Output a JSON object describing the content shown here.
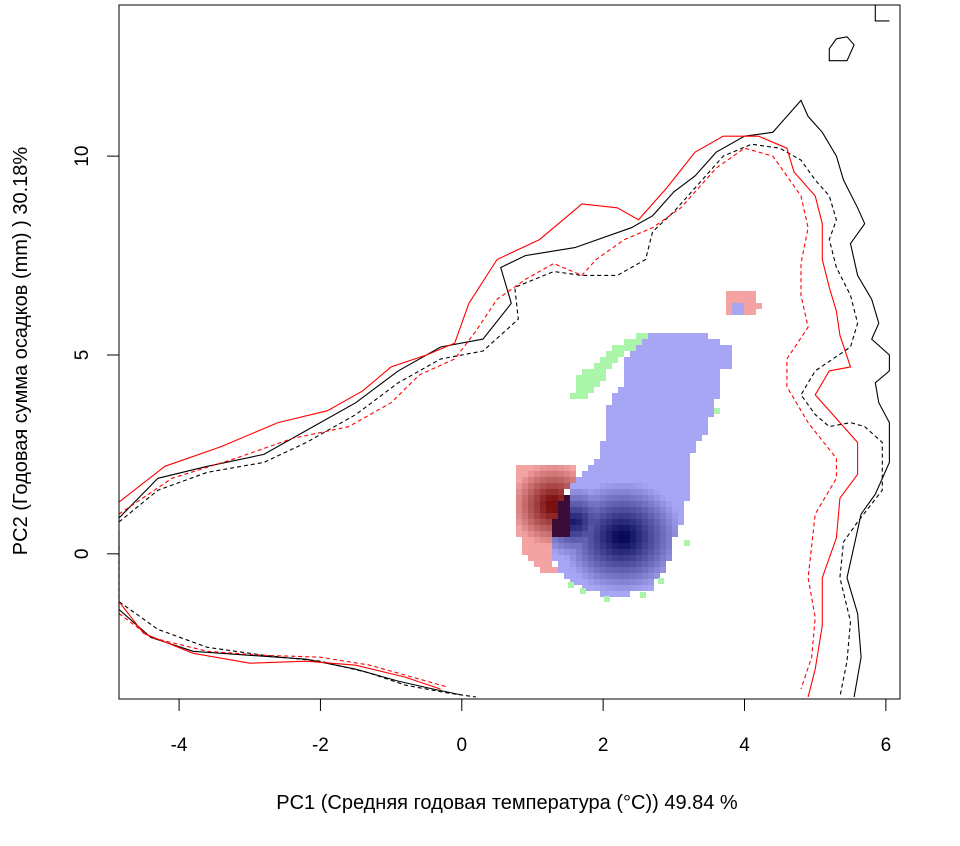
{
  "chart_data": {
    "type": "heatmap",
    "xlabel": "PC1 (Средняя годовая температура (°C)) 49.84 %",
    "ylabel": "PC2 (Годовая сумма осадков  (mm) ) 30.18%",
    "xlim": [
      -4.85,
      6.2
    ],
    "ylim": [
      -3.65,
      13.8
    ],
    "x_ticks": [
      -4,
      -2,
      0,
      2,
      4,
      6
    ],
    "y_ticks": [
      0,
      5,
      10
    ],
    "x_tick_labels": [
      "-4",
      "-2",
      "0",
      "2",
      "4",
      "6"
    ],
    "y_tick_labels": [
      "0",
      "5",
      "10"
    ],
    "grid": false,
    "colors": {
      "blue_density": "#a6a6f5",
      "dark_blue": "#0a0a5a",
      "red_density": "#f4a3a3",
      "dark_red": "#7a0f0f",
      "green_overlap": "#aaf5aa",
      "contour_black": "#000000",
      "contour_red": "#ff0000"
    },
    "series": [
      {
        "style": "solid",
        "color": "#000000",
        "points": [
          [
            -4.85,
            0.9
          ],
          [
            -4.3,
            1.9
          ],
          [
            -3.6,
            2.2
          ],
          [
            -2.8,
            2.5
          ],
          [
            -2.2,
            3.1
          ],
          [
            -1.5,
            3.8
          ],
          [
            -0.9,
            4.6
          ],
          [
            -0.3,
            5.2
          ],
          [
            0.3,
            5.4
          ],
          [
            0.7,
            6.3
          ],
          [
            0.55,
            7.2
          ],
          [
            0.9,
            7.5
          ],
          [
            1.6,
            7.7
          ],
          [
            2.4,
            8.2
          ],
          [
            2.7,
            8.5
          ],
          [
            3.0,
            9.1
          ],
          [
            3.3,
            9.5
          ],
          [
            3.6,
            10.1
          ],
          [
            4.0,
            10.5
          ],
          [
            4.4,
            10.6
          ],
          [
            4.6,
            11.0
          ],
          [
            4.8,
            11.4
          ],
          [
            4.9,
            11.0
          ],
          [
            5.1,
            10.6
          ],
          [
            5.3,
            10.0
          ],
          [
            5.4,
            9.4
          ],
          [
            5.6,
            8.7
          ],
          [
            5.7,
            8.3
          ],
          [
            5.5,
            7.8
          ],
          [
            5.6,
            7.0
          ],
          [
            5.8,
            6.4
          ],
          [
            5.9,
            5.8
          ],
          [
            5.8,
            5.4
          ],
          [
            6.05,
            5.0
          ],
          [
            6.05,
            4.6
          ],
          [
            5.85,
            4.3
          ],
          [
            5.9,
            3.8
          ],
          [
            6.05,
            3.3
          ],
          [
            6.05,
            2.3
          ],
          [
            5.85,
            1.5
          ],
          [
            5.65,
            1.0
          ],
          [
            5.55,
            0.2
          ],
          [
            5.45,
            -0.6
          ],
          [
            5.6,
            -1.5
          ],
          [
            5.65,
            -2.6
          ],
          [
            5.55,
            -3.6
          ]
        ]
      },
      {
        "style": "solid",
        "color": "#000000",
        "points": [
          [
            -4.85,
            0.6
          ],
          [
            -4.85,
            -1.4
          ],
          [
            -4.4,
            -2.1
          ],
          [
            -3.8,
            -2.45
          ],
          [
            -3.0,
            -2.55
          ],
          [
            -2.2,
            -2.65
          ],
          [
            -1.5,
            -2.9
          ],
          [
            -0.9,
            -3.2
          ],
          [
            -0.4,
            -3.4
          ],
          [
            0.0,
            -3.55
          ]
        ]
      },
      {
        "style": "dashed",
        "color": "#000000",
        "points": [
          [
            -4.85,
            0.8
          ],
          [
            -4.3,
            1.6
          ],
          [
            -3.6,
            2.05
          ],
          [
            -2.8,
            2.3
          ],
          [
            -2.2,
            2.8
          ],
          [
            -1.5,
            3.5
          ],
          [
            -0.9,
            4.3
          ],
          [
            -0.3,
            4.9
          ],
          [
            0.3,
            5.1
          ],
          [
            0.8,
            5.9
          ],
          [
            0.75,
            6.7
          ],
          [
            1.3,
            7.1
          ],
          [
            1.7,
            7.0
          ],
          [
            2.2,
            7.0
          ],
          [
            2.6,
            7.4
          ],
          [
            2.7,
            8.1
          ],
          [
            3.0,
            8.6
          ],
          [
            3.4,
            9.4
          ],
          [
            3.7,
            10.0
          ],
          [
            4.1,
            10.3
          ],
          [
            4.5,
            10.2
          ],
          [
            4.8,
            9.9
          ],
          [
            5.0,
            9.4
          ],
          [
            5.2,
            9.0
          ],
          [
            5.3,
            8.4
          ],
          [
            5.2,
            7.9
          ],
          [
            5.3,
            7.2
          ],
          [
            5.5,
            6.5
          ],
          [
            5.6,
            5.8
          ],
          [
            5.5,
            5.2
          ],
          [
            5.0,
            4.6
          ],
          [
            4.8,
            4.0
          ],
          [
            5.0,
            3.5
          ],
          [
            5.2,
            3.2
          ],
          [
            5.5,
            3.3
          ],
          [
            5.7,
            3.2
          ],
          [
            5.95,
            2.8
          ],
          [
            5.95,
            1.6
          ],
          [
            5.6,
            0.8
          ],
          [
            5.4,
            0.3
          ],
          [
            5.35,
            -0.6
          ],
          [
            5.5,
            -1.7
          ],
          [
            5.45,
            -2.7
          ],
          [
            5.35,
            -3.6
          ]
        ]
      },
      {
        "style": "dashed",
        "color": "#000000",
        "points": [
          [
            -4.85,
            0.2
          ],
          [
            -4.85,
            -1.2
          ],
          [
            -4.3,
            -1.9
          ],
          [
            -3.6,
            -2.35
          ],
          [
            -2.8,
            -2.55
          ],
          [
            -2.0,
            -2.7
          ],
          [
            -1.3,
            -3.0
          ],
          [
            -0.8,
            -3.3
          ],
          [
            -0.2,
            -3.5
          ],
          [
            0.2,
            -3.6
          ]
        ]
      },
      {
        "style": "solid",
        "color": "#ff0000",
        "points": [
          [
            -4.85,
            1.3
          ],
          [
            -4.2,
            2.2
          ],
          [
            -3.4,
            2.7
          ],
          [
            -2.6,
            3.3
          ],
          [
            -1.9,
            3.6
          ],
          [
            -1.4,
            4.1
          ],
          [
            -1.0,
            4.7
          ],
          [
            -0.5,
            5.0
          ],
          [
            -0.1,
            5.3
          ],
          [
            0.1,
            6.3
          ],
          [
            0.5,
            7.4
          ],
          [
            1.1,
            7.9
          ],
          [
            1.7,
            8.8
          ],
          [
            2.2,
            8.7
          ],
          [
            2.5,
            8.4
          ],
          [
            2.9,
            9.2
          ],
          [
            3.3,
            10.1
          ],
          [
            3.7,
            10.5
          ],
          [
            4.2,
            10.5
          ],
          [
            4.6,
            10.2
          ],
          [
            4.7,
            9.6
          ],
          [
            5.0,
            9.0
          ],
          [
            5.1,
            8.3
          ],
          [
            5.1,
            7.4
          ],
          [
            5.2,
            6.7
          ],
          [
            5.3,
            6.1
          ],
          [
            5.35,
            5.5
          ],
          [
            5.5,
            4.7
          ],
          [
            5.2,
            4.6
          ],
          [
            5.0,
            4.0
          ],
          [
            5.3,
            3.4
          ],
          [
            5.6,
            2.8
          ],
          [
            5.6,
            2.0
          ],
          [
            5.35,
            1.4
          ],
          [
            5.3,
            0.4
          ],
          [
            5.1,
            -0.6
          ],
          [
            5.1,
            -1.8
          ],
          [
            5.0,
            -2.9
          ],
          [
            4.9,
            -3.6
          ]
        ]
      },
      {
        "style": "solid",
        "color": "#ff0000",
        "points": [
          [
            -4.85,
            -1.2
          ],
          [
            -4.5,
            -2.0
          ],
          [
            -3.8,
            -2.5
          ],
          [
            -3.0,
            -2.75
          ],
          [
            -2.2,
            -2.7
          ],
          [
            -1.5,
            -2.8
          ],
          [
            -0.8,
            -3.1
          ],
          [
            -0.3,
            -3.4
          ]
        ]
      },
      {
        "style": "dashed",
        "color": "#ff0000",
        "points": [
          [
            -4.85,
            1.0
          ],
          [
            -4.1,
            1.9
          ],
          [
            -3.2,
            2.4
          ],
          [
            -2.4,
            2.9
          ],
          [
            -1.6,
            3.2
          ],
          [
            -1.0,
            3.8
          ],
          [
            -0.6,
            4.5
          ],
          [
            -0.1,
            4.9
          ],
          [
            0.2,
            5.6
          ],
          [
            0.5,
            6.4
          ],
          [
            0.9,
            6.9
          ],
          [
            1.3,
            7.3
          ],
          [
            1.7,
            7.0
          ],
          [
            1.9,
            7.4
          ],
          [
            2.3,
            7.9
          ],
          [
            2.7,
            8.2
          ],
          [
            3.1,
            8.7
          ],
          [
            3.6,
            9.7
          ],
          [
            4.0,
            10.2
          ],
          [
            4.4,
            10.0
          ],
          [
            4.6,
            9.5
          ],
          [
            4.8,
            9.0
          ],
          [
            4.9,
            8.2
          ],
          [
            4.8,
            7.3
          ],
          [
            4.8,
            6.5
          ],
          [
            4.9,
            5.7
          ],
          [
            4.6,
            4.9
          ],
          [
            4.6,
            4.2
          ],
          [
            4.9,
            3.3
          ],
          [
            5.3,
            2.4
          ],
          [
            5.3,
            1.9
          ],
          [
            5.0,
            1.0
          ],
          [
            4.9,
            -0.6
          ],
          [
            5.0,
            -1.6
          ],
          [
            4.95,
            -2.6
          ],
          [
            4.8,
            -3.4
          ]
        ]
      },
      {
        "style": "dashed",
        "color": "#ff0000",
        "points": [
          [
            -4.85,
            -1.5
          ],
          [
            -4.4,
            -2.1
          ],
          [
            -3.6,
            -2.45
          ],
          [
            -2.8,
            -2.55
          ],
          [
            -2.0,
            -2.6
          ],
          [
            -1.3,
            -2.8
          ],
          [
            -0.7,
            -3.1
          ],
          [
            -0.2,
            -3.35
          ]
        ]
      }
    ]
  }
}
